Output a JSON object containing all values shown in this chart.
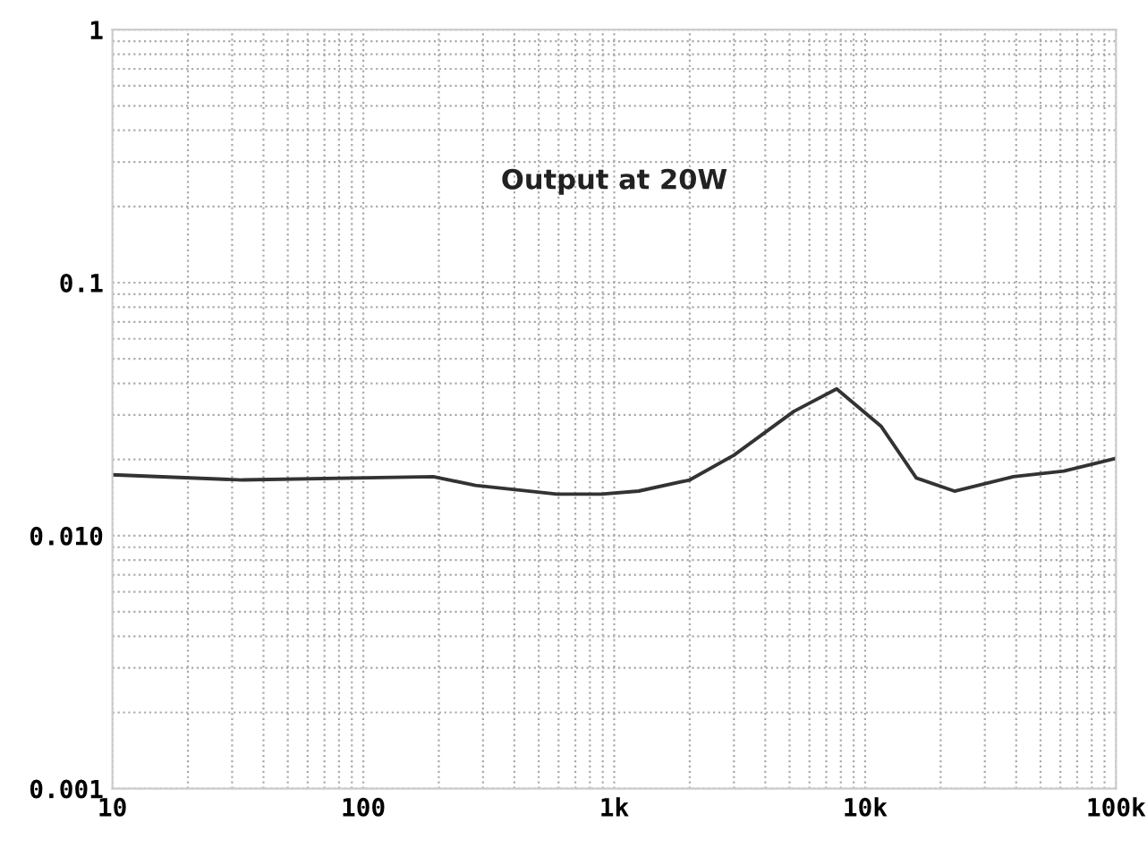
{
  "chart_data": {
    "type": "line",
    "log": "xy",
    "grid": true,
    "annotations": [
      "Output at 20W"
    ],
    "xlim": [
      10,
      100000
    ],
    "ylim": [
      0.001,
      1
    ],
    "xticks": [
      10,
      100,
      {
        "value": 1000,
        "label": "1k"
      },
      {
        "value": 10000,
        "label": "10k"
      },
      {
        "value": 100000,
        "label": "100k"
      }
    ],
    "yticks": [
      {
        "value": 0.001,
        "label": "0.001"
      },
      {
        "value": 0.01,
        "label": "0.010"
      },
      {
        "value": 0.1,
        "label": "0.1"
      },
      {
        "value": 1,
        "label": "1"
      }
    ],
    "x": [
      10,
      33,
      190,
      280,
      590,
      890,
      1250,
      2000,
      3000,
      5200,
      7700,
      11600,
      16000,
      22700,
      39000,
      62000,
      100000
    ],
    "series": [
      {
        "color": "#333333",
        "line_style": "solid",
        "values": [
          0.0174,
          0.0166,
          0.0171,
          0.0158,
          0.0146,
          0.0146,
          0.015,
          0.0166,
          0.0208,
          0.031,
          0.038,
          0.027,
          0.0169,
          0.015,
          0.0171,
          0.018,
          0.0202
        ]
      }
    ]
  }
}
